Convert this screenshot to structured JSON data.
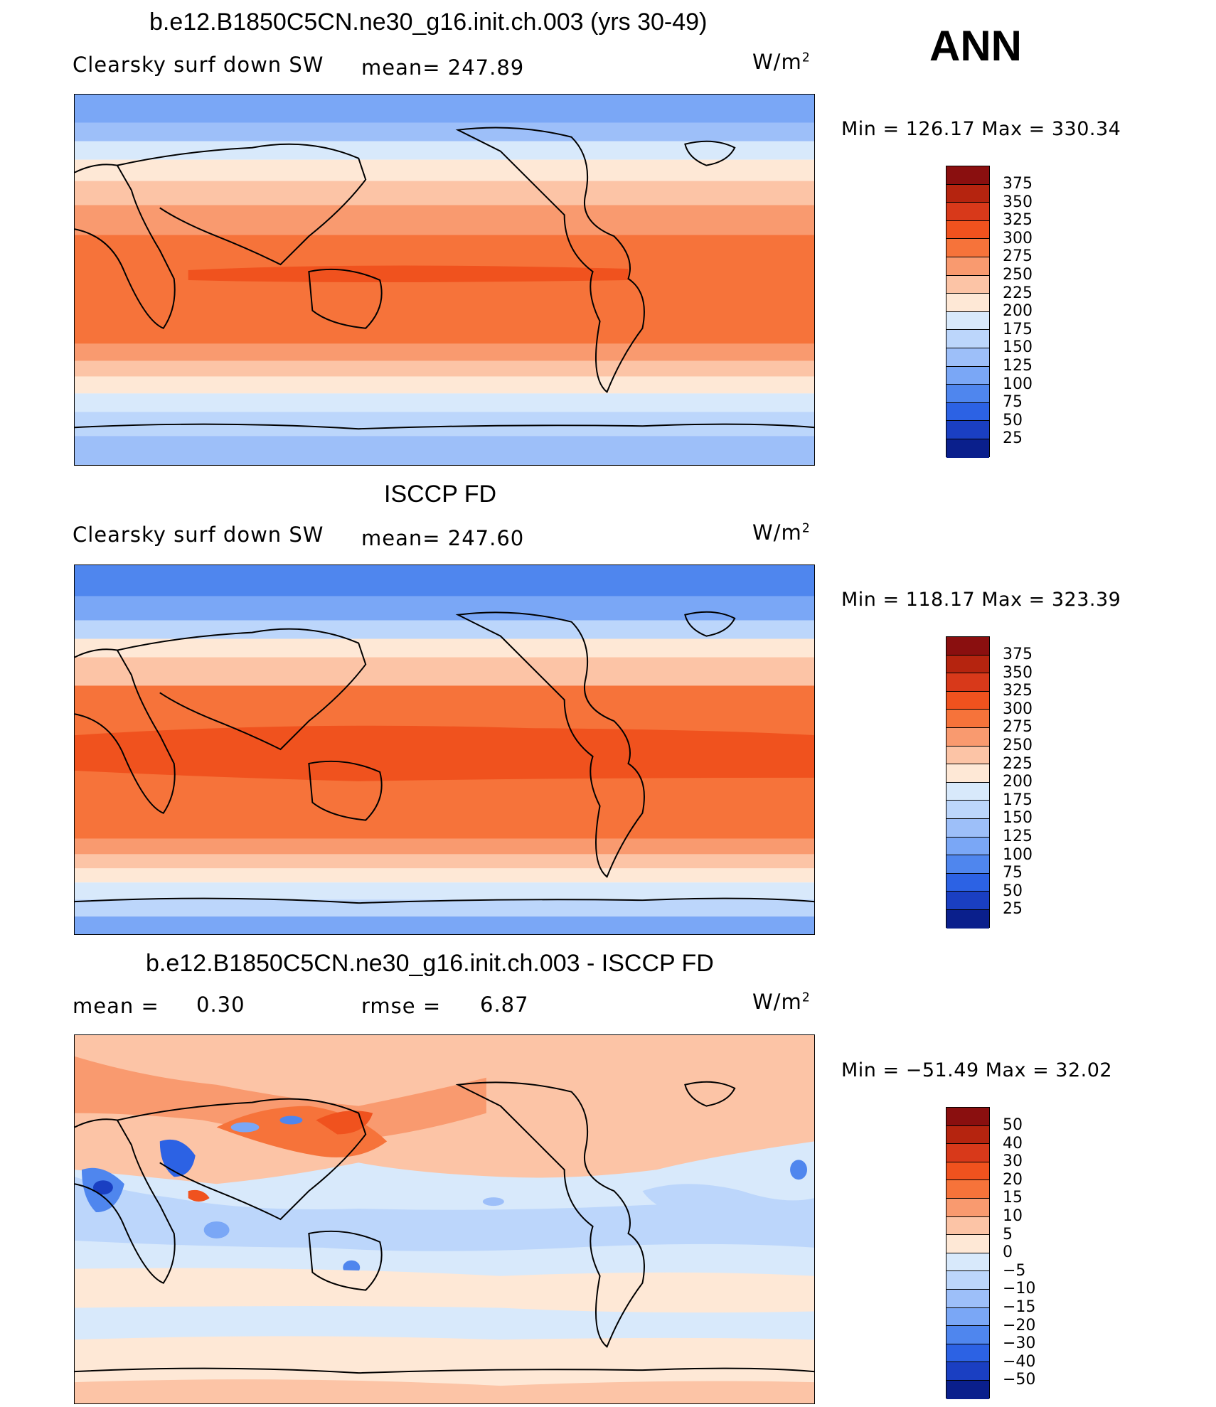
{
  "annual_label": "ANN",
  "units": "W/m",
  "units_sup": "2",
  "panels": [
    {
      "title": "b.e12.B1850C5CN.ne30_g16.init.ch.003 (yrs 30-49)",
      "variable": "Clearsky surf down SW",
      "stat_text": "mean=  247.89",
      "min_max": "Min  =  126.17  Max  =  330.34"
    },
    {
      "title": "ISCCP FD",
      "variable": "Clearsky surf down SW",
      "stat_text": "mean=  247.60",
      "min_max": "Min  =  118.17  Max  =  323.39"
    },
    {
      "title": "b.e12.B1850C5CN.ne30_g16.init.ch.003 - ISCCP FD",
      "mean_label": "mean  =",
      "mean_value": "0.30",
      "rmse_label": "rmse  =",
      "rmse_value": "6.87",
      "min_max": "Min  =  −51.49  Max  =    32.02"
    }
  ],
  "colorbar_abs": {
    "labels": [
      "375",
      "350",
      "325",
      "300",
      "275",
      "250",
      "225",
      "200",
      "175",
      "150",
      "125",
      "100",
      "75",
      "50",
      "25"
    ],
    "colors": [
      "#8a0f0f",
      "#b5240f",
      "#d8391a",
      "#f0521e",
      "#f6733a",
      "#f99a6f",
      "#fcc4a6",
      "#fee8d6",
      "#d8e9fb",
      "#bcd6fb",
      "#9dbff9",
      "#7aa7f6",
      "#4f86ee",
      "#2c62e4",
      "#1a3fc2",
      "#0a1f8c"
    ]
  },
  "colorbar_diff": {
    "labels": [
      "50",
      "40",
      "30",
      "20",
      "15",
      "10",
      "5",
      "0",
      "−5",
      "−10",
      "−15",
      "−20",
      "−30",
      "−40",
      "−50"
    ],
    "colors": [
      "#8a0f0f",
      "#b5240f",
      "#d8391a",
      "#f0521e",
      "#f6733a",
      "#f99a6f",
      "#fcc4a6",
      "#fee8d6",
      "#d8e9fb",
      "#bcd6fb",
      "#9dbff9",
      "#7aa7f6",
      "#4f86ee",
      "#2c62e4",
      "#1a3fc2",
      "#0a1f8c"
    ]
  }
}
